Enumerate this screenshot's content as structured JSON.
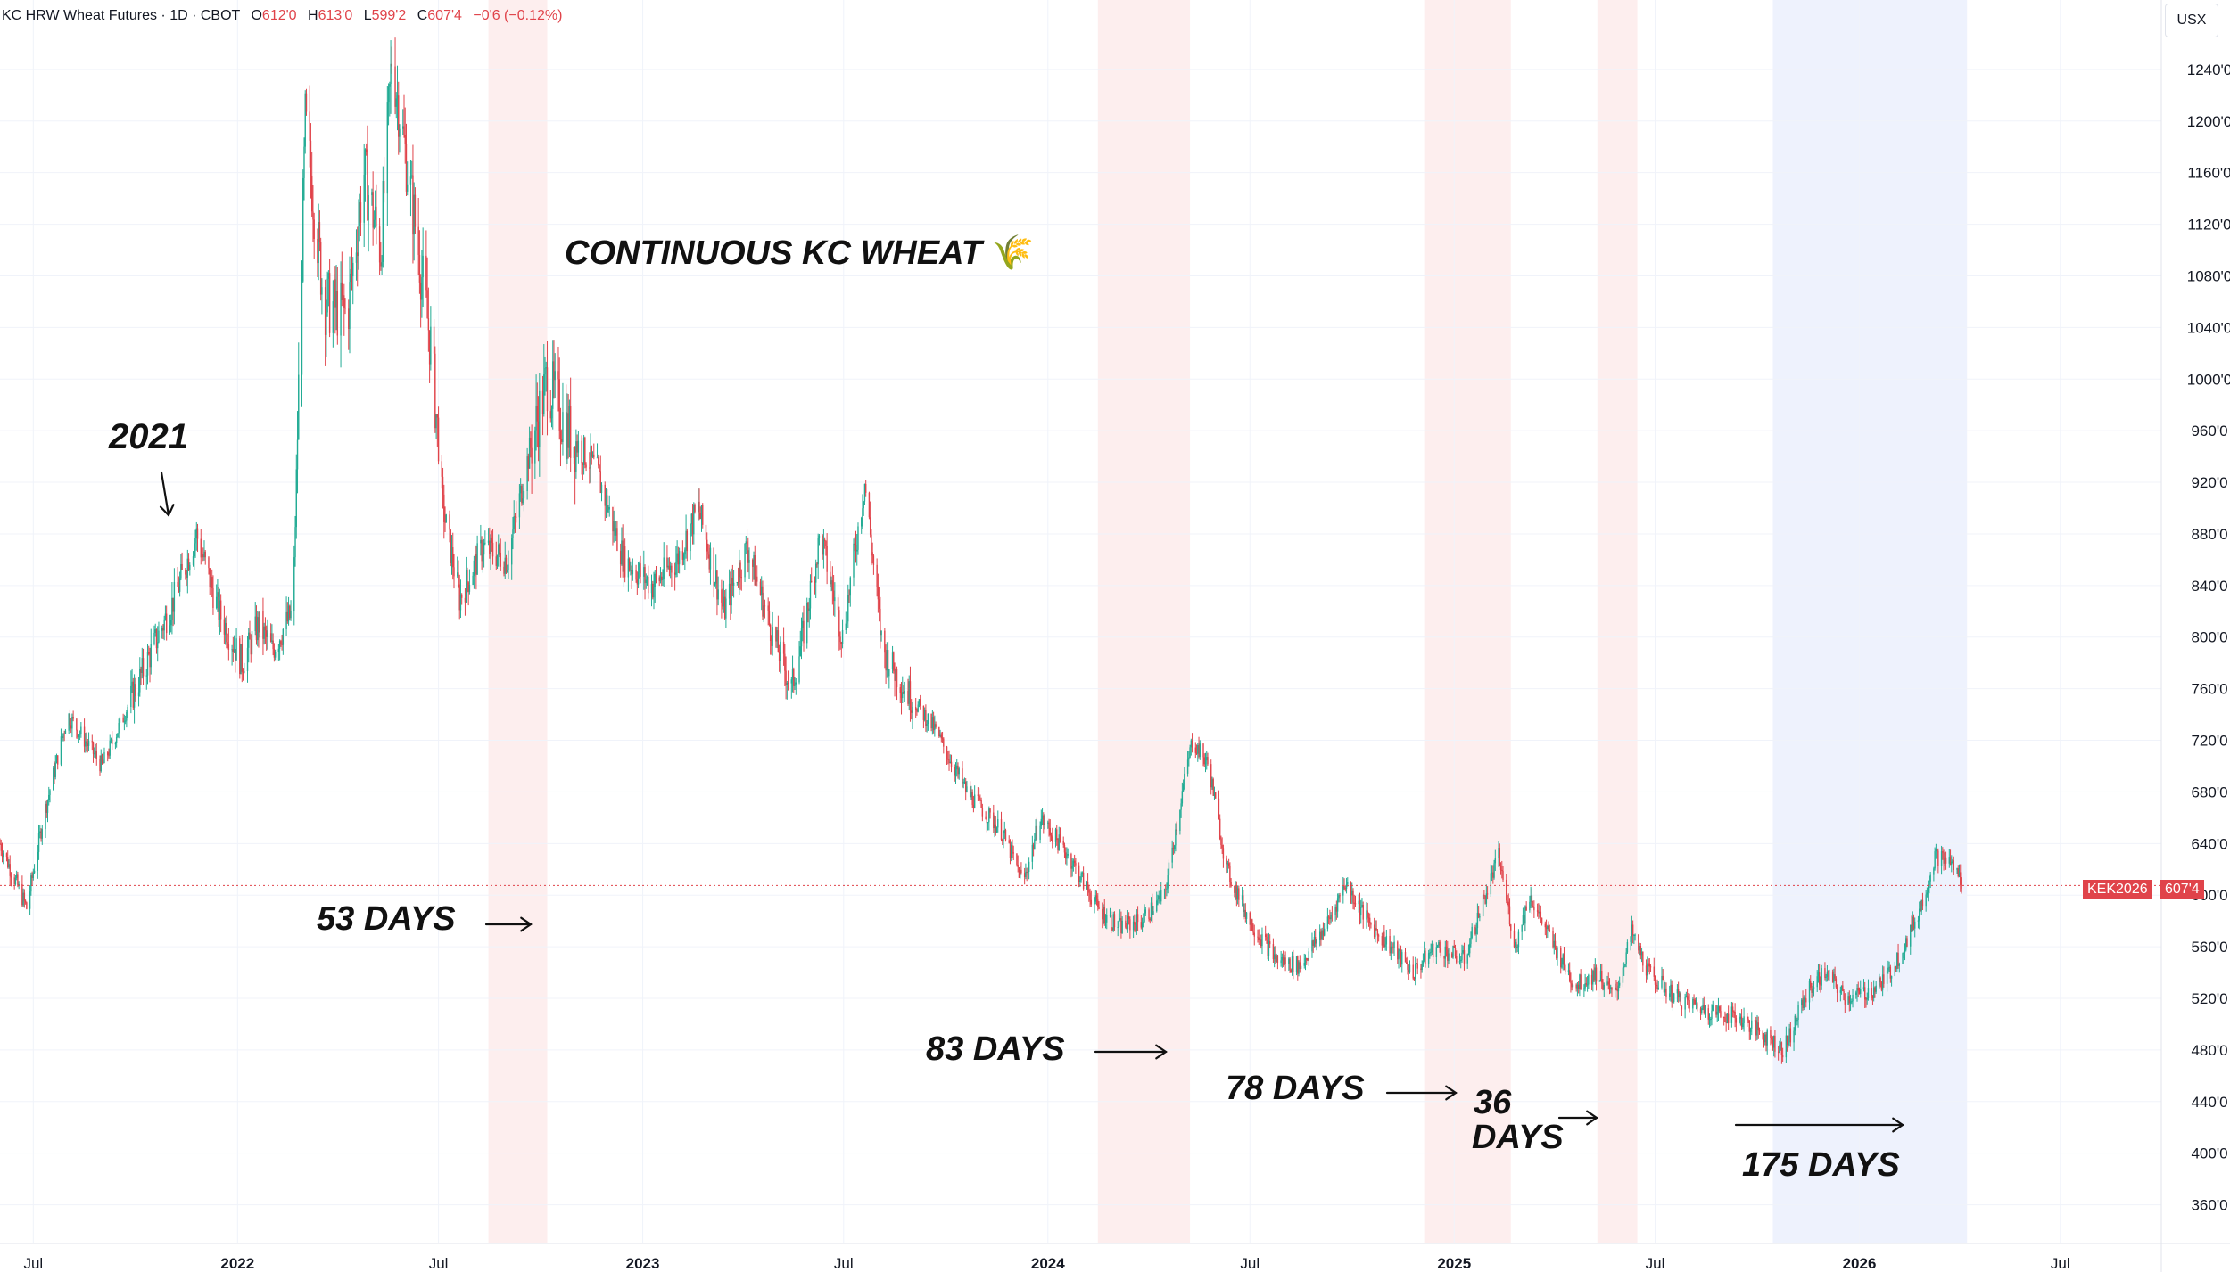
{
  "header": {
    "symbol": "KC HRW Wheat Futures · 1D · CBOT",
    "open_label": "O",
    "open_value": "612'0",
    "high_label": "H",
    "high_value": "613'0",
    "low_label": "L",
    "low_value": "599'2",
    "close_label": "C",
    "close_value": "607'4",
    "change": "−0'6 (−0.12%)"
  },
  "currency_label": "USX",
  "price_badge": {
    "symbol": "KEK2026",
    "price": "607'4"
  },
  "annotations": {
    "title": "CONTINUOUS KC WHEAT",
    "title_emoji": "🌾",
    "year_note": "2021",
    "days_53": "53 DAYS",
    "days_83": "83 DAYS",
    "days_78": "78 DAYS",
    "days_36_a": "36",
    "days_36_b": "DAYS",
    "days_175": "175 DAYS"
  },
  "colors": {
    "up": "#22ab94",
    "down": "#e0434a",
    "shade_red": "#fdeeee",
    "shade_blue": "#eef2fd",
    "grid": "#f0f3fa",
    "axis_text": "#131722"
  },
  "chart_data": {
    "type": "candlestick",
    "title": "CONTINUOUS KC WHEAT",
    "ylim": [
      330,
      1280
    ],
    "y_ticks": [
      360,
      400,
      440,
      480,
      520,
      560,
      600,
      640,
      680,
      720,
      760,
      800,
      840,
      880,
      920,
      960,
      1000,
      1040,
      1080,
      1120,
      1160,
      1200,
      1240
    ],
    "y_tick_labels": [
      "360'0",
      "400'0",
      "440'0",
      "480'0",
      "520'0",
      "560'0",
      "600'0",
      "640'0",
      "680'0",
      "720'0",
      "760'0",
      "800'0",
      "840'0",
      "880'0",
      "920'0",
      "960'0",
      "1000'0",
      "1040'0",
      "1080'0",
      "1120'0",
      "1160'0",
      "1200'0",
      "1240'0"
    ],
    "x_ticks": [
      {
        "date": "2021-07-01",
        "label": "Jul",
        "major": false
      },
      {
        "date": "2022-01-01",
        "label": "2022",
        "major": true
      },
      {
        "date": "2022-07-01",
        "label": "Jul",
        "major": false
      },
      {
        "date": "2023-01-01",
        "label": "2023",
        "major": true
      },
      {
        "date": "2023-07-01",
        "label": "Jul",
        "major": false
      },
      {
        "date": "2024-01-01",
        "label": "2024",
        "major": true
      },
      {
        "date": "2024-07-01",
        "label": "Jul",
        "major": false
      },
      {
        "date": "2025-01-01",
        "label": "2025",
        "major": true
      },
      {
        "date": "2025-07-01",
        "label": "Jul",
        "major": false
      },
      {
        "date": "2026-01-01",
        "label": "2026",
        "major": true
      },
      {
        "date": "2026-07-01",
        "label": "Jul",
        "major": false
      }
    ],
    "x_range": [
      "2021-06-01",
      "2026-09-30"
    ],
    "price_line": 607.5,
    "shaded_periods": [
      {
        "start": "2022-08-15",
        "end": "2022-10-07",
        "color": "red",
        "label": "53 DAYS"
      },
      {
        "start": "2024-02-15",
        "end": "2024-05-08",
        "color": "red",
        "label": "83 DAYS"
      },
      {
        "start": "2024-12-05",
        "end": "2025-02-21",
        "color": "red",
        "label": "78 DAYS"
      },
      {
        "start": "2025-05-10",
        "end": "2025-06-15",
        "color": "red",
        "label": "36 DAYS"
      },
      {
        "start": "2025-10-15",
        "end": "2026-04-08",
        "color": "blue",
        "label": "175 DAYS"
      }
    ],
    "price_path": [
      {
        "date": "2021-06-01",
        "close": 640
      },
      {
        "date": "2021-06-25",
        "close": 590
      },
      {
        "date": "2021-07-10",
        "close": 660
      },
      {
        "date": "2021-08-01",
        "close": 740
      },
      {
        "date": "2021-09-01",
        "close": 700
      },
      {
        "date": "2021-10-01",
        "close": 760
      },
      {
        "date": "2021-11-05",
        "close": 830
      },
      {
        "date": "2021-11-25",
        "close": 880
      },
      {
        "date": "2021-12-15",
        "close": 820
      },
      {
        "date": "2022-01-05",
        "close": 780
      },
      {
        "date": "2022-01-20",
        "close": 810
      },
      {
        "date": "2022-02-01",
        "close": 790
      },
      {
        "date": "2022-02-20",
        "close": 820
      },
      {
        "date": "2022-03-03",
        "close": 1200
      },
      {
        "date": "2022-03-20",
        "close": 1060
      },
      {
        "date": "2022-04-10",
        "close": 1050
      },
      {
        "date": "2022-04-25",
        "close": 1160
      },
      {
        "date": "2022-05-10",
        "close": 1100
      },
      {
        "date": "2022-05-20",
        "close": 1250
      },
      {
        "date": "2022-06-10",
        "close": 1120
      },
      {
        "date": "2022-06-25",
        "close": 1020
      },
      {
        "date": "2022-07-05",
        "close": 900
      },
      {
        "date": "2022-07-20",
        "close": 830
      },
      {
        "date": "2022-08-10",
        "close": 870
      },
      {
        "date": "2022-09-01",
        "close": 860
      },
      {
        "date": "2022-09-20",
        "close": 940
      },
      {
        "date": "2022-10-07",
        "close": 1000
      },
      {
        "date": "2022-10-25",
        "close": 960
      },
      {
        "date": "2022-11-20",
        "close": 930
      },
      {
        "date": "2022-12-15",
        "close": 860
      },
      {
        "date": "2023-01-10",
        "close": 840
      },
      {
        "date": "2023-02-01",
        "close": 860
      },
      {
        "date": "2023-02-20",
        "close": 900
      },
      {
        "date": "2023-03-15",
        "close": 820
      },
      {
        "date": "2023-04-05",
        "close": 870
      },
      {
        "date": "2023-04-25",
        "close": 810
      },
      {
        "date": "2023-05-15",
        "close": 760
      },
      {
        "date": "2023-05-25",
        "close": 800
      },
      {
        "date": "2023-06-10",
        "close": 880
      },
      {
        "date": "2023-06-30",
        "close": 800
      },
      {
        "date": "2023-07-20",
        "close": 920
      },
      {
        "date": "2023-08-05",
        "close": 790
      },
      {
        "date": "2023-08-25",
        "close": 760
      },
      {
        "date": "2023-09-20",
        "close": 730
      },
      {
        "date": "2023-10-20",
        "close": 680
      },
      {
        "date": "2023-11-20",
        "close": 650
      },
      {
        "date": "2023-12-10",
        "close": 610
      },
      {
        "date": "2023-12-25",
        "close": 660
      },
      {
        "date": "2024-01-20",
        "close": 630
      },
      {
        "date": "2024-02-15",
        "close": 590
      },
      {
        "date": "2024-03-05",
        "close": 575
      },
      {
        "date": "2024-03-25",
        "close": 580
      },
      {
        "date": "2024-04-15",
        "close": 600
      },
      {
        "date": "2024-05-01",
        "close": 680
      },
      {
        "date": "2024-05-10",
        "close": 720
      },
      {
        "date": "2024-05-25",
        "close": 700
      },
      {
        "date": "2024-06-10",
        "close": 620
      },
      {
        "date": "2024-07-01",
        "close": 580
      },
      {
        "date": "2024-07-25",
        "close": 550
      },
      {
        "date": "2024-08-15",
        "close": 545
      },
      {
        "date": "2024-09-10",
        "close": 580
      },
      {
        "date": "2024-09-25",
        "close": 610
      },
      {
        "date": "2024-10-15",
        "close": 580
      },
      {
        "date": "2024-11-05",
        "close": 560
      },
      {
        "date": "2024-11-25",
        "close": 540
      },
      {
        "date": "2024-12-15",
        "close": 560
      },
      {
        "date": "2025-01-10",
        "close": 550
      },
      {
        "date": "2025-01-25",
        "close": 590
      },
      {
        "date": "2025-02-10",
        "close": 630
      },
      {
        "date": "2025-02-25",
        "close": 560
      },
      {
        "date": "2025-03-10",
        "close": 600
      },
      {
        "date": "2025-04-01",
        "close": 560
      },
      {
        "date": "2025-04-20",
        "close": 530
      },
      {
        "date": "2025-05-10",
        "close": 540
      },
      {
        "date": "2025-05-25",
        "close": 520
      },
      {
        "date": "2025-06-10",
        "close": 570
      },
      {
        "date": "2025-06-25",
        "close": 540
      },
      {
        "date": "2025-07-20",
        "close": 520
      },
      {
        "date": "2025-08-20",
        "close": 510
      },
      {
        "date": "2025-09-15",
        "close": 505
      },
      {
        "date": "2025-10-10",
        "close": 490
      },
      {
        "date": "2025-10-25",
        "close": 480
      },
      {
        "date": "2025-11-15",
        "close": 525
      },
      {
        "date": "2025-12-01",
        "close": 540
      },
      {
        "date": "2025-12-20",
        "close": 520
      },
      {
        "date": "2026-01-10",
        "close": 525
      },
      {
        "date": "2026-01-25",
        "close": 535
      },
      {
        "date": "2026-02-10",
        "close": 560
      },
      {
        "date": "2026-02-25",
        "close": 590
      },
      {
        "date": "2026-03-10",
        "close": 630
      },
      {
        "date": "2026-03-25",
        "close": 625
      },
      {
        "date": "2026-04-05",
        "close": 607.5
      }
    ]
  }
}
